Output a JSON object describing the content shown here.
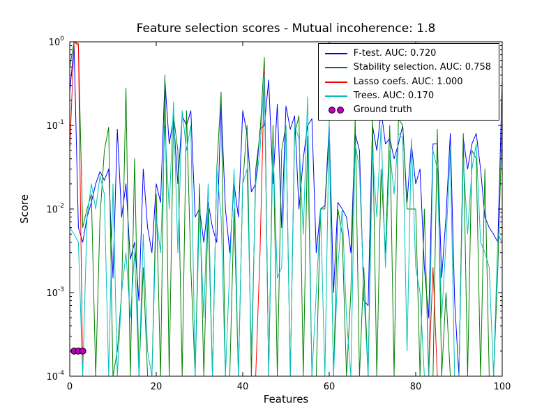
{
  "chart_data": {
    "type": "line",
    "title": "Feature selection scores - Mutual incoherence: 1.8",
    "xlabel": "Features",
    "ylabel": "Score",
    "x_range": [
      0,
      100
    ],
    "y_scale": "log",
    "y_range_exponents": [
      -4,
      0
    ],
    "x_ticks": [
      0,
      20,
      40,
      60,
      80,
      100
    ],
    "y_tick_exponents": [
      0,
      -1,
      -2,
      -3,
      -4
    ],
    "grid": false,
    "legend_position": "upper right",
    "series": [
      {
        "name": "F-test. AUC: 0.720",
        "color": "#0000ff",
        "values": [
          0.25,
          0.9,
          0.006,
          0.004,
          0.008,
          0.012,
          0.02,
          0.028,
          0.022,
          0.03,
          0.0015,
          0.09,
          0.008,
          0.02,
          0.0025,
          0.004,
          0.0008,
          0.03,
          0.006,
          0.003,
          0.02,
          0.012,
          0.35,
          0.06,
          0.12,
          0.02,
          0.13,
          0.1,
          0.15,
          0.008,
          0.01,
          0.004,
          0.012,
          0.006,
          0.004,
          0.18,
          0.01,
          0.003,
          0.02,
          0.008,
          0.15,
          0.08,
          0.016,
          0.02,
          0.09,
          0.1,
          0.35,
          0.02,
          0.18,
          0.006,
          0.17,
          0.09,
          0.13,
          0.01,
          0.04,
          0.1,
          0.12,
          0.003,
          0.01,
          0.011,
          0.1,
          0.001,
          0.012,
          0.01,
          0.008,
          0.003,
          0.08,
          0.05,
          0.0008,
          0.0007,
          0.1,
          0.05,
          0.15,
          0.06,
          0.07,
          0.04,
          0.06,
          0.1,
          0.012,
          0.06,
          0.02,
          0.03,
          0.002,
          0.0005,
          0.06,
          0.06,
          0.0015,
          0.008,
          0.08,
          0.0008,
          0.0001,
          0.07,
          0.03,
          0.06,
          0.08,
          0.03,
          0.008,
          0.006,
          0.005,
          0.004,
          0.35
        ]
      },
      {
        "name": "Stability selection. AUC: 0.758",
        "color": "#008000",
        "values": [
          0.5,
          1.0,
          0.9,
          0.006,
          0.01,
          0.015,
          0.0001,
          0.008,
          0.05,
          0.095,
          0.0001,
          0.0002,
          0.001,
          0.28,
          0.0001,
          0.04,
          0.0001,
          0.002,
          0.0001,
          0.0001,
          0.015,
          0.0001,
          0.4,
          0.0001,
          0.13,
          0.05,
          0.0001,
          0.15,
          0.002,
          0.0001,
          0.02,
          0.0001,
          0.01,
          0.0001,
          0.03,
          0.25,
          0.0001,
          0.0001,
          0.01,
          0.0001,
          0.02,
          0.1,
          0.0001,
          0.03,
          0.08,
          0.65,
          0.0001,
          0.1,
          0.0001,
          0.05,
          0.1,
          0.0001,
          0.08,
          0.13,
          0.0001,
          0.075,
          0.0001,
          0.0001,
          0.01,
          0.01,
          0.08,
          0.0001,
          0.01,
          0.005,
          0.0001,
          0.001,
          0.12,
          0.0001,
          0.002,
          0.0001,
          0.12,
          0.0001,
          0.03,
          0.003,
          0.1,
          0.0001,
          0.12,
          0.1,
          0.01,
          0.01,
          0.01,
          0.0001,
          0.01,
          0.0001,
          0.0001,
          0.09,
          0.0001,
          0.001,
          0.0001,
          0.0001,
          0.0001,
          0.08,
          0.0001,
          0.05,
          0.04,
          0.0001,
          0.03,
          0.0001,
          0.0001,
          0.002,
          0.12
        ]
      },
      {
        "name": "Lasso coefs. AUC: 1.000",
        "color": "#ff0000",
        "values": [
          0.05,
          1.0,
          0.95,
          0.0001,
          0.0001,
          0.0001,
          0.0001,
          0.0001,
          0.0001,
          0.0001,
          0.0001,
          0.0001,
          0.0001,
          0.0001,
          0.0001,
          0.0001,
          0.0001,
          0.0001,
          0.0001,
          0.0001,
          0.0001,
          0.0001,
          0.0001,
          0.0001,
          0.0001,
          0.0001,
          0.0001,
          0.0001,
          0.0001,
          0.0001,
          0.0001,
          0.0001,
          0.0001,
          0.0001,
          0.0001,
          0.0001,
          0.0001,
          0.0001,
          0.0001,
          0.0001,
          0.0001,
          0.0001,
          0.0001,
          0.0001,
          0.003,
          0.45,
          0.0001,
          0.0001,
          0.0001,
          0.0001,
          0.0001,
          0.0001,
          0.0001,
          0.0001,
          0.0001,
          0.0001,
          0.0001,
          0.0001,
          0.0001,
          0.0001,
          0.0001,
          0.0001,
          0.0001,
          0.0001,
          0.0001,
          0.0001,
          0.0001,
          0.0001,
          0.0001,
          0.0001,
          0.0001,
          0.0001,
          0.0001,
          0.0001,
          0.0001,
          0.0001,
          0.0001,
          0.0001,
          0.0001,
          0.0001,
          0.0001,
          0.0001,
          0.0001,
          0.0001,
          0.002,
          0.0001,
          0.0001,
          0.0001,
          0.0001,
          0.0001,
          0.0001,
          0.0001,
          0.0001,
          0.0001,
          0.0001,
          0.0001,
          0.0001,
          0.0001,
          0.0001,
          0.0001,
          0.0001
        ]
      },
      {
        "name": "Trees. AUC: 0.170",
        "color": "#00bfbf",
        "values": [
          0.006,
          0.005,
          0.004,
          0.0001,
          0.008,
          0.02,
          0.01,
          0.025,
          0.015,
          0.0001,
          0.02,
          0.0001,
          0.001,
          0.003,
          0.0005,
          0.003,
          0.0001,
          0.005,
          0.0002,
          0.0001,
          0.008,
          0.003,
          0.1,
          0.01,
          0.19,
          0.003,
          0.15,
          0.05,
          0.1,
          0.0001,
          0.01,
          0.0005,
          0.02,
          0.0001,
          0.03,
          0.008,
          0.0001,
          0.002,
          0.03,
          0.0001,
          0.02,
          0.03,
          0.0002,
          0.02,
          0.05,
          0.4,
          0.0001,
          0.06,
          0.0015,
          0.002,
          0.1,
          0.0001,
          0.1,
          0.07,
          0.005,
          0.22,
          0.0001,
          0.001,
          0.01,
          0.0001,
          0.12,
          0.0001,
          0.002,
          0.01,
          0.0005,
          0.0001,
          0.06,
          0.03,
          0.001,
          0.0001,
          0.05,
          0.008,
          0.1,
          0.002,
          0.05,
          0.015,
          0.08,
          0.07,
          0.0002,
          0.07,
          0.002,
          0.001,
          0.0001,
          0.0001,
          0.05,
          0.03,
          0.0005,
          0.004,
          0.05,
          0.0001,
          0.0001,
          0.04,
          0.005,
          0.03,
          0.06,
          0.004,
          0.003,
          0.002,
          0.0001,
          0.005,
          0.004
        ]
      }
    ],
    "ground_truth": {
      "name": "Ground truth",
      "color": "#bf00bf",
      "edge_color": "#000000",
      "points": [
        [
          1,
          0.0002
        ],
        [
          2,
          0.0002
        ],
        [
          3,
          0.0002
        ]
      ]
    }
  }
}
